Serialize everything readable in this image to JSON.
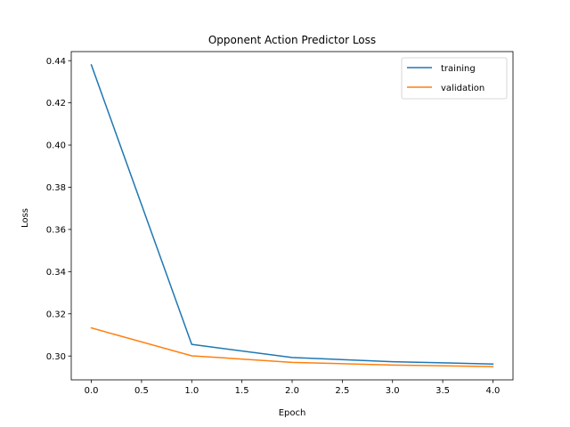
{
  "chart_data": {
    "type": "line",
    "title": "Opponent Action Predictor Loss",
    "xlabel": "Epoch",
    "ylabel": "Loss",
    "x": [
      0,
      1,
      2,
      3,
      4
    ],
    "series": [
      {
        "name": "training",
        "values": [
          0.438,
          0.3055,
          0.2993,
          0.2973,
          0.2962
        ],
        "color": "#1f77b4"
      },
      {
        "name": "validation",
        "values": [
          0.3133,
          0.3001,
          0.297,
          0.2957,
          0.295
        ],
        "color": "#ff7f0e"
      }
    ],
    "xlim": [
      -0.2,
      4.2
    ],
    "ylim": [
      0.2887,
      0.4443
    ],
    "xticks": [
      "0.0",
      "0.5",
      "1.0",
      "1.5",
      "2.0",
      "2.5",
      "3.0",
      "3.5",
      "4.0"
    ],
    "xtick_values": [
      0,
      0.5,
      1,
      1.5,
      2,
      2.5,
      3,
      3.5,
      4
    ],
    "yticks": [
      "0.30",
      "0.32",
      "0.34",
      "0.36",
      "0.38",
      "0.40",
      "0.42",
      "0.44"
    ],
    "ytick_values": [
      0.3,
      0.32,
      0.34,
      0.36,
      0.38,
      0.4,
      0.42,
      0.44
    ],
    "grid": false,
    "legend_position": "top-right"
  }
}
